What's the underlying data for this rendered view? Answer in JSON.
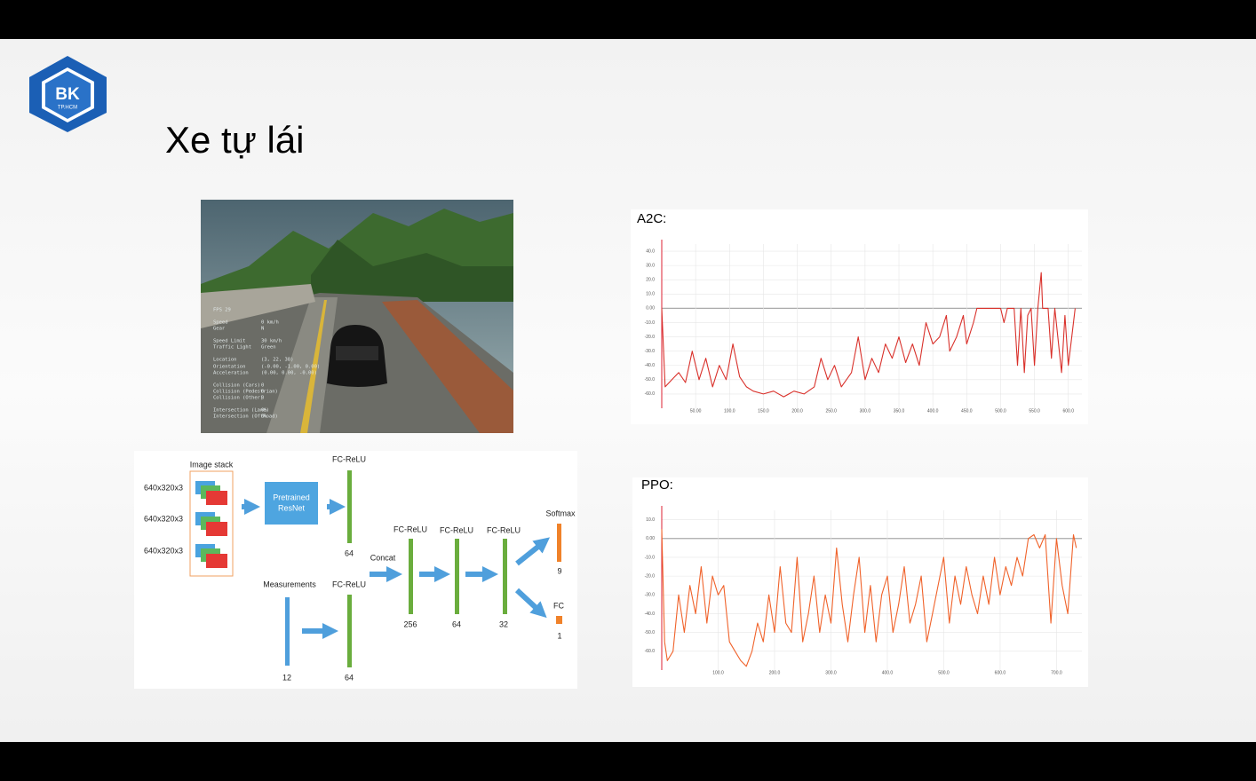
{
  "header": {
    "logo": "BK",
    "logo_sub": "TP.HCM",
    "title": "Xe tự lái"
  },
  "photo": {
    "hud": [
      {
        "label": "FPS  29",
        "value": ""
      },
      {
        "label": "Speed",
        "value": "0 km/h"
      },
      {
        "label": "Gear",
        "value": "N"
      },
      {
        "label": "Speed Limit",
        "value": "30 km/h"
      },
      {
        "label": "Traffic Light",
        "value": "Green"
      },
      {
        "label": "Location",
        "value": "(3, 22, 38)"
      },
      {
        "label": "Orientation",
        "value": "(-0.00, -1.00, 0.00)"
      },
      {
        "label": "Acceleration",
        "value": "(0.00, 0.00, -0.00)"
      },
      {
        "label": "Collision (Cars)",
        "value": "0"
      },
      {
        "label": "Collision (Pedestrian)",
        "value": "0"
      },
      {
        "label": "Collision (Other)",
        "value": "0"
      },
      {
        "label": "Intersection (Lane)",
        "value": "0%"
      },
      {
        "label": "Intersection (OffRoad)",
        "value": "0%"
      }
    ]
  },
  "diagram": {
    "image_stack": "Image stack",
    "inputs": [
      "640x320x3",
      "640x320x3",
      "640x320x3"
    ],
    "resnet": [
      "Pretrained",
      "ResNet"
    ],
    "fc_relu": [
      "FC-ReLU",
      "FC-ReLU",
      "FC-ReLU",
      "FC-ReLU",
      "FC-ReLU"
    ],
    "measurements": "Measurements",
    "concat": "Concat",
    "softmax": "Softmax",
    "fc": "FC",
    "sizes": [
      64,
      64,
      12,
      256,
      64,
      32,
      9,
      1
    ]
  },
  "chart_data": [
    {
      "type": "line",
      "title": "A2C:",
      "xlim": [
        0,
        620
      ],
      "ylim": [
        -70,
        45
      ],
      "grid": true,
      "xticks": [
        {
          "value": 50,
          "label": "50.00"
        },
        {
          "value": 100,
          "label": "100.0"
        },
        {
          "value": 150,
          "label": "150.0"
        },
        {
          "value": 200,
          "label": "200.0"
        },
        {
          "value": 250,
          "label": "250.0"
        },
        {
          "value": 300,
          "label": "300.0"
        },
        {
          "value": 350,
          "label": "350.0"
        },
        {
          "value": 400,
          "label": "400.0"
        },
        {
          "value": 450,
          "label": "450.0"
        },
        {
          "value": 500,
          "label": "500.0"
        },
        {
          "value": 550,
          "label": "550.0"
        },
        {
          "value": 600,
          "label": "600.0"
        }
      ],
      "yticks": [
        {
          "value": 40,
          "label": "40.0"
        },
        {
          "value": 30,
          "label": "30.0"
        },
        {
          "value": 20,
          "label": "20.0"
        },
        {
          "value": 10,
          "label": "10.0"
        },
        {
          "value": 0,
          "label": "0.00"
        },
        {
          "value": -10,
          "label": "-10.0"
        },
        {
          "value": -20,
          "label": "-20.0"
        },
        {
          "value": -30,
          "label": "-30.0"
        },
        {
          "value": -40,
          "label": "-40.0"
        },
        {
          "value": -50,
          "label": "-50.0"
        },
        {
          "value": -60,
          "label": "-60.0"
        }
      ],
      "x": [
        0,
        5,
        15,
        25,
        35,
        45,
        55,
        65,
        75,
        85,
        95,
        105,
        115,
        125,
        135,
        150,
        165,
        180,
        195,
        210,
        225,
        235,
        245,
        255,
        265,
        280,
        290,
        300,
        310,
        320,
        330,
        340,
        350,
        360,
        370,
        380,
        390,
        400,
        410,
        420,
        425,
        435,
        445,
        450,
        460,
        465,
        480,
        500,
        505,
        510,
        520,
        525,
        530,
        535,
        540,
        545,
        550,
        555,
        560,
        562,
        570,
        575,
        580,
        590,
        595,
        600,
        605,
        610
      ],
      "series": [
        {
          "color": "#d9312b",
          "values": [
            0,
            -55,
            -50,
            -45,
            -52,
            -30,
            -50,
            -35,
            -55,
            -40,
            -50,
            -25,
            -48,
            -55,
            -58,
            -60,
            -58,
            -62,
            -58,
            -60,
            -55,
            -35,
            -50,
            -40,
            -55,
            -45,
            -20,
            -50,
            -35,
            -45,
            -25,
            -35,
            -20,
            -38,
            -25,
            -40,
            -10,
            -25,
            -20,
            -5,
            -30,
            -20,
            -5,
            -25,
            -10,
            0,
            0,
            0,
            -10,
            0,
            0,
            -40,
            0,
            -45,
            -5,
            0,
            -40,
            0,
            25,
            0,
            0,
            -35,
            0,
            -45,
            -5,
            -40,
            -20,
            0
          ]
        }
      ]
    },
    {
      "type": "line",
      "title": "PPO:",
      "xlim": [
        0,
        745
      ],
      "ylim": [
        -70,
        15
      ],
      "grid": true,
      "xticks": [
        {
          "value": 100,
          "label": "100.0"
        },
        {
          "value": 200,
          "label": "200.0"
        },
        {
          "value": 300,
          "label": "300.0"
        },
        {
          "value": 400,
          "label": "400.0"
        },
        {
          "value": 500,
          "label": "500.0"
        },
        {
          "value": 600,
          "label": "600.0"
        },
        {
          "value": 700,
          "label": "700.0"
        }
      ],
      "yticks": [
        {
          "value": 10,
          "label": "10.0"
        },
        {
          "value": 0,
          "label": "0.00"
        },
        {
          "value": -10,
          "label": "-10.0"
        },
        {
          "value": -20,
          "label": "-20.0"
        },
        {
          "value": -30,
          "label": "-30.0"
        },
        {
          "value": -40,
          "label": "-40.0"
        },
        {
          "value": -50,
          "label": "-50.0"
        },
        {
          "value": -60,
          "label": "-60.0"
        }
      ],
      "x": [
        0,
        5,
        10,
        20,
        30,
        40,
        50,
        60,
        70,
        80,
        90,
        100,
        110,
        120,
        130,
        140,
        150,
        160,
        170,
        180,
        190,
        200,
        210,
        220,
        230,
        240,
        250,
        260,
        270,
        280,
        290,
        300,
        310,
        320,
        330,
        340,
        350,
        360,
        370,
        380,
        390,
        400,
        410,
        420,
        430,
        440,
        450,
        460,
        470,
        480,
        490,
        500,
        510,
        520,
        530,
        540,
        550,
        560,
        570,
        580,
        590,
        600,
        610,
        620,
        630,
        640,
        650,
        660,
        670,
        680,
        690,
        700,
        710,
        720,
        730,
        735
      ],
      "series": [
        {
          "color": "#f0622a",
          "values": [
            5,
            -55,
            -65,
            -60,
            -30,
            -50,
            -25,
            -40,
            -15,
            -45,
            -20,
            -30,
            -25,
            -55,
            -60,
            -65,
            -68,
            -60,
            -45,
            -55,
            -30,
            -50,
            -15,
            -45,
            -50,
            -10,
            -55,
            -40,
            -20,
            -50,
            -30,
            -45,
            -5,
            -35,
            -55,
            -30,
            -10,
            -50,
            -25,
            -55,
            -30,
            -20,
            -50,
            -35,
            -15,
            -45,
            -35,
            -20,
            -55,
            -40,
            -25,
            -10,
            -45,
            -20,
            -35,
            -15,
            -30,
            -40,
            -20,
            -35,
            -10,
            -30,
            -15,
            -25,
            -10,
            -20,
            0,
            2,
            -5,
            2,
            -45,
            0,
            -25,
            -40,
            2,
            -5
          ]
        }
      ]
    }
  ]
}
